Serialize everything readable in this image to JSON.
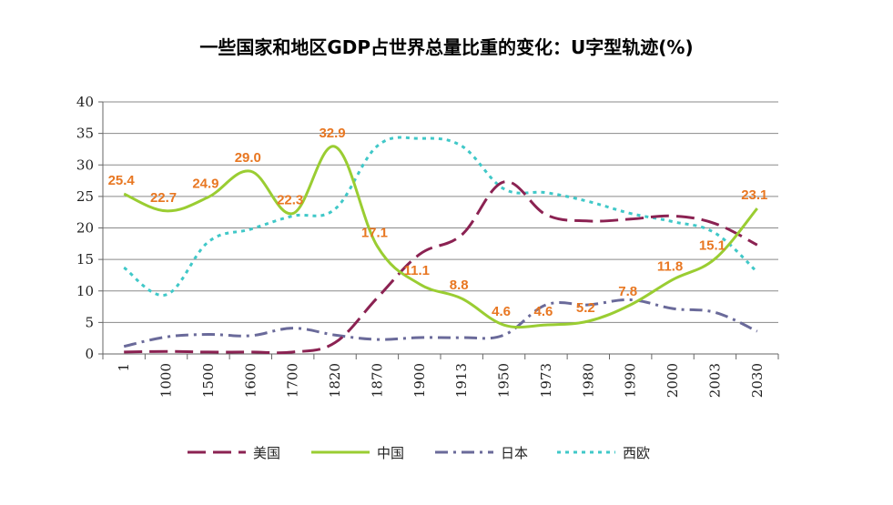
{
  "chart_data": {
    "type": "line",
    "title": "一些国家和地区GDP占世界总量比重的变化：U字型轨迹(%)",
    "categories": [
      "1",
      "1000",
      "1500",
      "1600",
      "1700",
      "1820",
      "1870",
      "1900",
      "1913",
      "1950",
      "1973",
      "1980",
      "1990",
      "2000",
      "2003",
      "2030"
    ],
    "ylim": [
      0,
      40
    ],
    "yticks": [
      0,
      5,
      10,
      15,
      20,
      25,
      30,
      35,
      40
    ],
    "grid": true,
    "legend_position": "bottom",
    "series": [
      {
        "name": "美国",
        "color": "#8B2252",
        "dash": "long-dash",
        "values": [
          0.3,
          0.4,
          0.3,
          0.3,
          0.3,
          1.8,
          8.9,
          15.8,
          18.9,
          27.3,
          22.1,
          21.1,
          21.4,
          21.9,
          20.7,
          17.3
        ]
      },
      {
        "name": "中国",
        "color": "#9ACD32",
        "dash": "solid",
        "values": [
          25.4,
          22.7,
          24.9,
          29.0,
          22.3,
          32.9,
          17.1,
          11.1,
          8.8,
          4.6,
          4.6,
          5.2,
          7.8,
          11.8,
          15.1,
          23.1
        ],
        "data_labels": [
          "25.4",
          "22.7",
          "24.9",
          "29.0",
          "22.3",
          "32.9",
          "17.1",
          "11.1",
          "8.8",
          "4.6",
          "4.6",
          "5.2",
          "7.8",
          "11.8",
          "15.1",
          "23.1"
        ]
      },
      {
        "name": "日本",
        "color": "#6A6A9A",
        "dash": "dash-dot",
        "values": [
          1.2,
          2.7,
          3.1,
          2.9,
          4.1,
          3.0,
          2.3,
          2.6,
          2.6,
          3.0,
          7.8,
          7.8,
          8.6,
          7.2,
          6.6,
          3.6
        ]
      },
      {
        "name": "西欧",
        "color": "#40C8C8",
        "dash": "dotted",
        "values": [
          13.7,
          9.4,
          17.8,
          19.8,
          21.9,
          23.0,
          33.0,
          34.2,
          33.0,
          26.2,
          25.6,
          24.2,
          22.3,
          21.0,
          19.2,
          13.0
        ]
      }
    ],
    "data_label_color": "#E87722"
  }
}
